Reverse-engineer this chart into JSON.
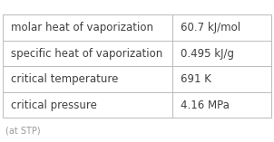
{
  "rows": [
    [
      "molar heat of vaporization",
      "60.7 kJ/mol"
    ],
    [
      "specific heat of vaporization",
      "0.495 kJ/g"
    ],
    [
      "critical temperature",
      "691 K"
    ],
    [
      "critical pressure",
      "4.16 MPa"
    ]
  ],
  "footer": "(at STP)",
  "bg_color": "#ffffff",
  "border_color": "#bbbbbb",
  "text_color": "#404040",
  "footer_color": "#999999",
  "font_size": 8.5,
  "footer_font_size": 7.0,
  "col_split": 0.63
}
